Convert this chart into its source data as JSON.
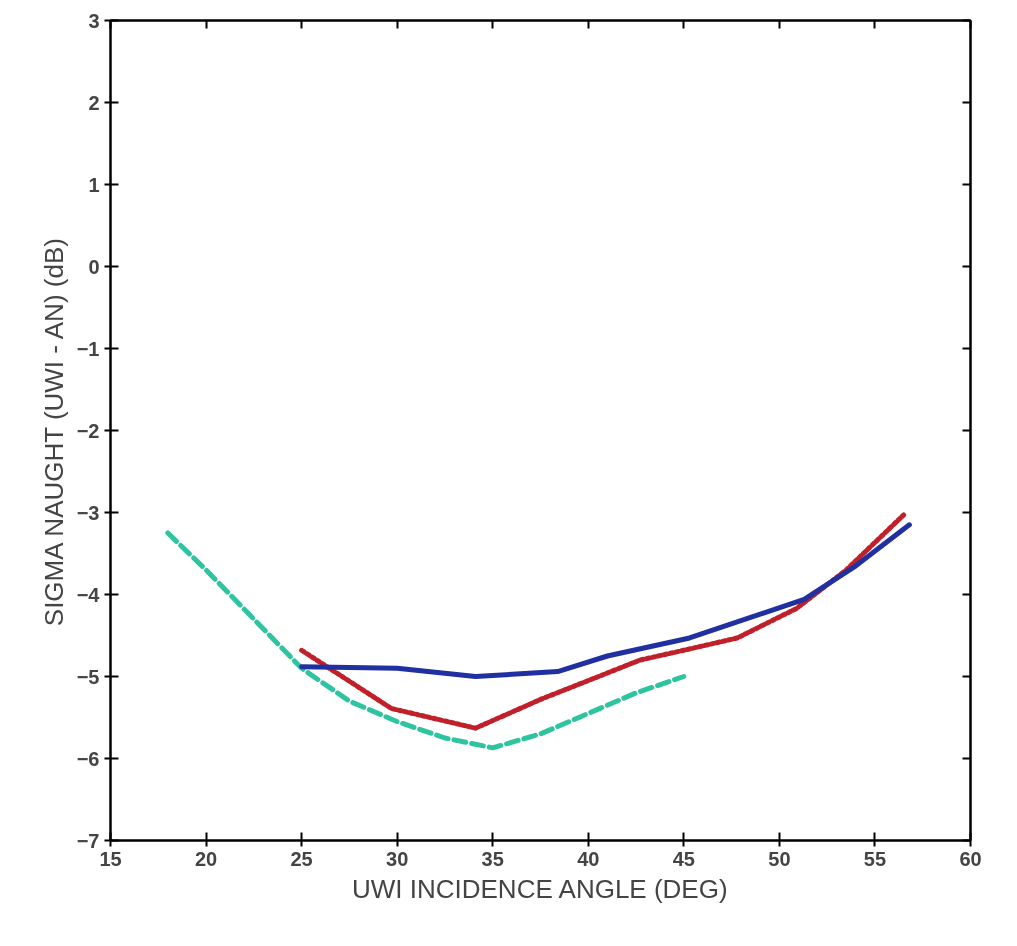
{
  "chart_data": {
    "type": "line",
    "xlabel": "UWI INCIDENCE ANGLE (DEG)",
    "ylabel": "SIGMA NAUGHT (UWI - AN) (dB)",
    "xlim": [
      15,
      60
    ],
    "ylim": [
      -7,
      3
    ],
    "xticks": [
      15,
      20,
      25,
      30,
      35,
      40,
      45,
      50,
      55,
      60
    ],
    "yticks": [
      -7,
      -6,
      -5,
      -4,
      -3,
      -2,
      -1,
      0,
      1,
      2,
      3
    ],
    "grid": false,
    "series": [
      {
        "color": "#2ec4a0",
        "line_style": "dashed",
        "x": [
          18,
          20,
          22.5,
          25,
          27.5,
          30,
          32.5,
          35,
          37.5,
          40,
          42.5,
          45
        ],
        "values": [
          -3.25,
          -3.7,
          -4.3,
          -4.9,
          -5.3,
          -5.55,
          -5.75,
          -5.87,
          -5.7,
          -5.45,
          -5.2,
          -5.0
        ]
      },
      {
        "color": "#c0202a",
        "line_style": "dotted",
        "x": [
          25,
          29.7,
          34.1,
          37.6,
          40,
          42.7,
          45,
          47.8,
          50.9,
          53.5,
          56.5
        ],
        "values": [
          -4.68,
          -5.39,
          -5.63,
          -5.27,
          -5.05,
          -4.8,
          -4.68,
          -4.53,
          -4.17,
          -3.7,
          -3.03
        ]
      },
      {
        "color": "#2030a0",
        "line_style": "solid",
        "x": [
          25,
          30,
          34.1,
          38.4,
          41,
          45.3,
          51.3,
          54,
          56.8
        ],
        "values": [
          -4.88,
          -4.9,
          -5.0,
          -4.94,
          -4.75,
          -4.53,
          -4.06,
          -3.65,
          -3.15
        ]
      }
    ]
  }
}
